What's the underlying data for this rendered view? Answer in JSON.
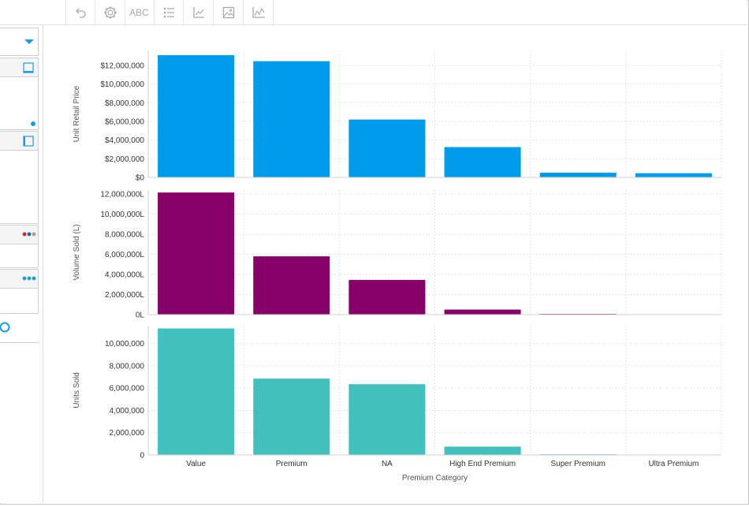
{
  "toolbar": {
    "buttons": [
      {
        "name": "undo-button",
        "icon": "undo-icon",
        "label": ""
      },
      {
        "name": "theme-button",
        "icon": "gear-icon",
        "label": ""
      },
      {
        "name": "labels-button",
        "icon": "abc-icon",
        "label": "ABC"
      },
      {
        "name": "legend-button",
        "icon": "list-icon",
        "label": ""
      },
      {
        "name": "axes-button",
        "icon": "axes-icon",
        "label": ""
      },
      {
        "name": "image-button",
        "icon": "image-icon",
        "label": ""
      },
      {
        "name": "chart-type-button",
        "icon": "line-chart-icon",
        "label": ""
      }
    ]
  },
  "colors": {
    "accent": "#1a9ce6",
    "series1": "#009bea",
    "series2": "#860067",
    "series3": "#41c0be",
    "dot_red": "#e02020",
    "dot_blue": "#1a5fd0",
    "dot_grey": "#a0a0a0"
  },
  "chart_data": {
    "type": "bar",
    "categories": [
      "Value",
      "Premium",
      "NA",
      "High End Premium",
      "Super Premium",
      "Ultra Premium"
    ],
    "xlabel": "Premium Category",
    "panels": [
      {
        "name": "Unit Retail Price",
        "ylabel": "Unit Retail Price",
        "values": [
          13100000,
          12450000,
          6200000,
          3250000,
          500000,
          450000
        ],
        "ylim": [
          0,
          13600000
        ],
        "ticks": [
          0,
          2000000,
          4000000,
          6000000,
          8000000,
          10000000,
          12000000
        ],
        "tick_labels": [
          "$0",
          "$2,000,000",
          "$4,000,000",
          "$6,000,000",
          "$8,000,000",
          "$10,000,000",
          "$12,000,000"
        ]
      },
      {
        "name": "Volume Sold (L)",
        "ylabel": "Volume Sold (L)",
        "values": [
          12150000,
          5800000,
          3450000,
          500000,
          70000,
          5000
        ],
        "ylim": [
          0,
          12400000
        ],
        "ticks": [
          0,
          2000000,
          4000000,
          6000000,
          8000000,
          10000000,
          12000000
        ],
        "tick_labels": [
          "0L",
          "2,000,000L",
          "4,000,000L",
          "6,000,000L",
          "8,000,000L",
          "10,000,000L",
          "12,000,000L"
        ]
      },
      {
        "name": "Units Sold",
        "ylabel": "Units Sold",
        "values": [
          11350000,
          6850000,
          6350000,
          750000,
          60000,
          10000
        ],
        "ylim": [
          0,
          11600000
        ],
        "ticks": [
          0,
          2000000,
          4000000,
          6000000,
          8000000,
          10000000
        ],
        "tick_labels": [
          "0",
          "2,000,000",
          "4,000,000",
          "6,000,000",
          "8,000,000",
          "10,000,000"
        ]
      }
    ]
  }
}
